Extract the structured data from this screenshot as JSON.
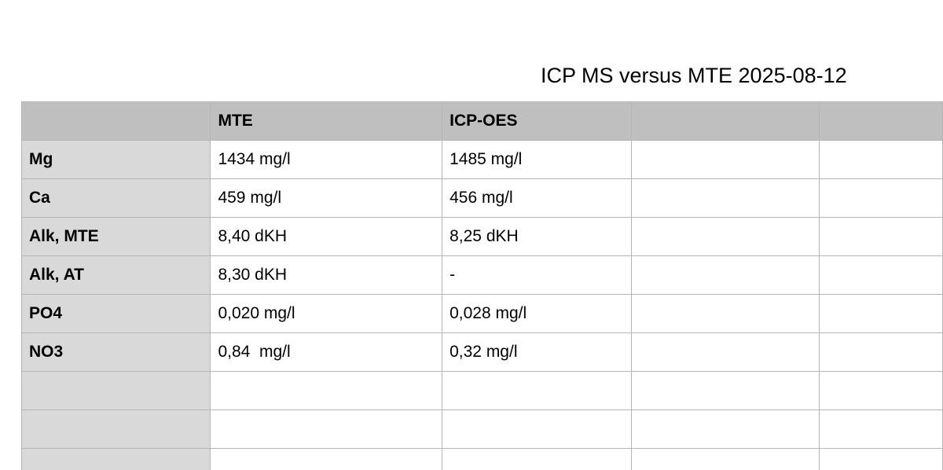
{
  "document": {
    "title": "ICP MS versus MTE 2025-08-12"
  },
  "table": {
    "header": [
      "",
      "MTE",
      "ICP-OES",
      "",
      ""
    ],
    "rows": [
      [
        "Mg",
        "1434 mg/l",
        "1485 mg/l",
        "",
        ""
      ],
      [
        "Ca",
        "459 mg/l",
        "456 mg/l",
        "",
        ""
      ],
      [
        "Alk, MTE",
        "8,40 dKH",
        "8,25 dKH",
        "",
        ""
      ],
      [
        "Alk, AT",
        "8,30 dKH",
        "-",
        "",
        ""
      ],
      [
        "PO4",
        "0,020 mg/l",
        "0,028 mg/l",
        "",
        ""
      ],
      [
        "NO3",
        "0,84  mg/l",
        "0,32 mg/l",
        "",
        ""
      ],
      [
        "",
        "",
        "",
        "",
        ""
      ],
      [
        "",
        "",
        "",
        "",
        ""
      ],
      [
        "",
        "",
        "",
        "",
        ""
      ]
    ]
  },
  "colors": {
    "header_fill": "#bfbfbf",
    "row_header_fill": "#d9d9d9",
    "grid_line": "#b5b5b5"
  }
}
